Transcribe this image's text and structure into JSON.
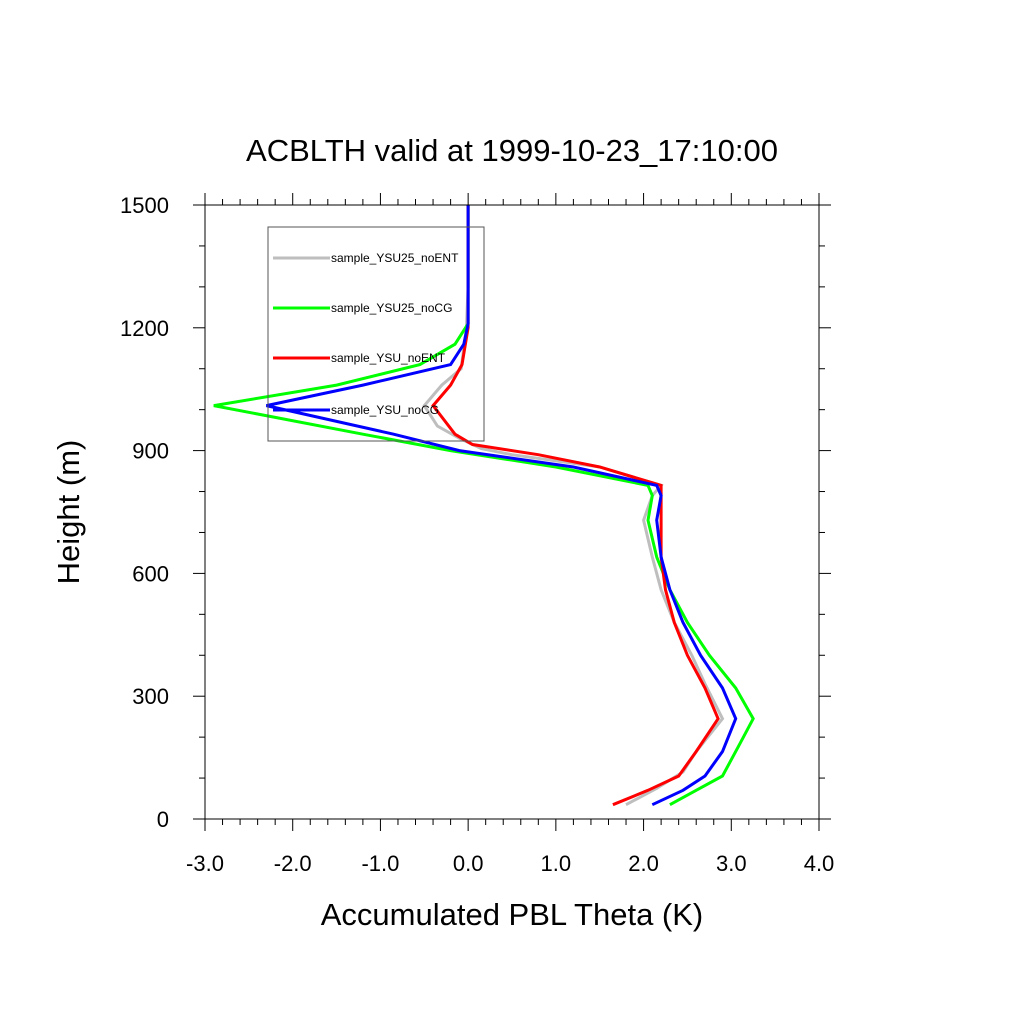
{
  "chart_data": {
    "type": "line",
    "title": "ACBLTH valid at 1999-10-23_17:10:00",
    "xlabel": "Accumulated PBL Theta (K)",
    "ylabel": "Height (m)",
    "xlim": [
      -3.0,
      4.0
    ],
    "ylim": [
      0,
      1500
    ],
    "xticks": [
      "-3.0",
      "-2.0",
      "-1.0",
      "0.0",
      "1.0",
      "2.0",
      "3.0",
      "4.0"
    ],
    "yticks": [
      "0",
      "300",
      "600",
      "900",
      "1200",
      "1500"
    ],
    "grid": false,
    "legend_position": "top-left",
    "series": [
      {
        "name": "sample_YSU25_noENT",
        "color": "#bebebe",
        "points": [
          [
            1.8,
            35
          ],
          [
            2.15,
            75
          ],
          [
            2.45,
            115
          ],
          [
            2.6,
            165
          ],
          [
            2.9,
            245
          ],
          [
            2.7,
            330
          ],
          [
            2.55,
            400
          ],
          [
            2.35,
            480
          ],
          [
            2.2,
            560
          ],
          [
            2.1,
            640
          ],
          [
            2.0,
            730
          ],
          [
            2.1,
            790
          ],
          [
            2.2,
            815
          ],
          [
            1.5,
            860
          ],
          [
            0.5,
            890
          ],
          [
            0.15,
            905
          ],
          [
            -0.1,
            930
          ],
          [
            -0.35,
            960
          ],
          [
            -0.5,
            1010
          ],
          [
            -0.3,
            1060
          ],
          [
            -0.08,
            1100
          ],
          [
            -0.02,
            1200
          ],
          [
            0.0,
            1300
          ],
          [
            0.0,
            1400
          ],
          [
            0.0,
            1500
          ]
        ]
      },
      {
        "name": "sample_YSU25_noCG",
        "color": "#00ff00",
        "points": [
          [
            2.3,
            35
          ],
          [
            2.6,
            70
          ],
          [
            2.9,
            105
          ],
          [
            3.1,
            185
          ],
          [
            3.25,
            245
          ],
          [
            3.05,
            320
          ],
          [
            2.75,
            400
          ],
          [
            2.5,
            480
          ],
          [
            2.3,
            560
          ],
          [
            2.15,
            640
          ],
          [
            2.05,
            730
          ],
          [
            2.1,
            790
          ],
          [
            2.05,
            815
          ],
          [
            1.0,
            860
          ],
          [
            -0.2,
            900
          ],
          [
            -1.2,
            940
          ],
          [
            -2.9,
            1010
          ],
          [
            -1.5,
            1060
          ],
          [
            -0.55,
            1110
          ],
          [
            -0.15,
            1160
          ],
          [
            0.0,
            1210
          ],
          [
            0.0,
            1300
          ],
          [
            0.0,
            1400
          ],
          [
            0.0,
            1500
          ]
        ]
      },
      {
        "name": "sample_YSU_noENT",
        "color": "#ff0000",
        "points": [
          [
            1.65,
            35
          ],
          [
            2.05,
            70
          ],
          [
            2.4,
            105
          ],
          [
            2.6,
            165
          ],
          [
            2.85,
            245
          ],
          [
            2.7,
            320
          ],
          [
            2.5,
            400
          ],
          [
            2.35,
            480
          ],
          [
            2.25,
            560
          ],
          [
            2.2,
            640
          ],
          [
            2.2,
            730
          ],
          [
            2.2,
            790
          ],
          [
            2.2,
            815
          ],
          [
            1.5,
            860
          ],
          [
            0.8,
            890
          ],
          [
            0.05,
            915
          ],
          [
            -0.15,
            940
          ],
          [
            -0.4,
            1010
          ],
          [
            -0.2,
            1060
          ],
          [
            -0.07,
            1110
          ],
          [
            0.0,
            1200
          ],
          [
            0.0,
            1300
          ],
          [
            0.0,
            1400
          ],
          [
            0.0,
            1500
          ]
        ]
      },
      {
        "name": "sample_YSU_noCG",
        "color": "#0000ff",
        "points": [
          [
            2.1,
            35
          ],
          [
            2.45,
            70
          ],
          [
            2.7,
            105
          ],
          [
            2.9,
            165
          ],
          [
            3.05,
            245
          ],
          [
            2.9,
            320
          ],
          [
            2.65,
            400
          ],
          [
            2.45,
            480
          ],
          [
            2.3,
            560
          ],
          [
            2.2,
            640
          ],
          [
            2.15,
            730
          ],
          [
            2.2,
            790
          ],
          [
            2.15,
            815
          ],
          [
            1.2,
            860
          ],
          [
            -0.1,
            900
          ],
          [
            -0.85,
            940
          ],
          [
            -2.3,
            1010
          ],
          [
            -1.2,
            1060
          ],
          [
            -0.2,
            1110
          ],
          [
            -0.05,
            1160
          ],
          [
            0.0,
            1210
          ],
          [
            0.0,
            1300
          ],
          [
            0.0,
            1400
          ],
          [
            0.0,
            1500
          ]
        ]
      }
    ],
    "legend": {
      "entries": [
        {
          "label": "sample_YSU25_noENT",
          "color": "#bebebe"
        },
        {
          "label": "sample_YSU25_noCG",
          "color": "#00ff00"
        },
        {
          "label": "sample_YSU_noENT",
          "color": "#ff0000"
        },
        {
          "label": "sample_YSU_noCG",
          "color": "#0000ff"
        }
      ]
    }
  }
}
